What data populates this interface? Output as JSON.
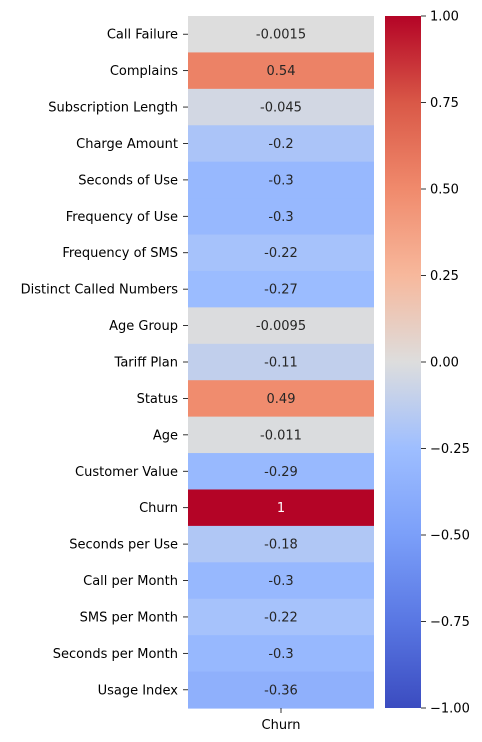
{
  "chart_data": {
    "type": "heatmap",
    "title": "",
    "columns": [
      "Churn"
    ],
    "rows": [
      "Call Failure",
      "Complains",
      "Subscription Length",
      "Charge Amount",
      "Seconds of Use",
      "Frequency of Use",
      "Frequency of SMS",
      "Distinct Called Numbers",
      "Age Group",
      "Tariff Plan",
      "Status",
      "Age",
      "Customer Value",
      "Churn",
      "Seconds per Use",
      "Call per Month",
      "SMS per Month",
      "Seconds per Month",
      "Usage Index"
    ],
    "values": [
      -0.0015,
      0.54,
      -0.045,
      -0.2,
      -0.3,
      -0.3,
      -0.22,
      -0.27,
      -0.0095,
      -0.11,
      0.49,
      -0.011,
      -0.29,
      1,
      -0.18,
      -0.3,
      -0.22,
      -0.3,
      -0.36
    ],
    "value_labels": [
      "-0.0015",
      "0.54",
      "-0.045",
      "-0.2",
      "-0.3",
      "-0.3",
      "-0.22",
      "-0.27",
      "-0.0095",
      "-0.11",
      "0.49",
      "-0.011",
      "-0.29",
      "1",
      "-0.18",
      "-0.3",
      "-0.22",
      "-0.3",
      "-0.36"
    ],
    "colormap": "coolwarm",
    "vmin": -1.0,
    "vmax": 1.0,
    "colorbar": {
      "ticks": [
        1.0,
        0.75,
        0.5,
        0.25,
        0.0,
        -0.25,
        -0.5,
        -0.75,
        -1.0
      ],
      "tick_labels": [
        "1.00",
        "0.75",
        "0.50",
        "0.25",
        "0.00",
        "−0.25",
        "−0.50",
        "−0.75",
        "−1.00"
      ]
    }
  }
}
